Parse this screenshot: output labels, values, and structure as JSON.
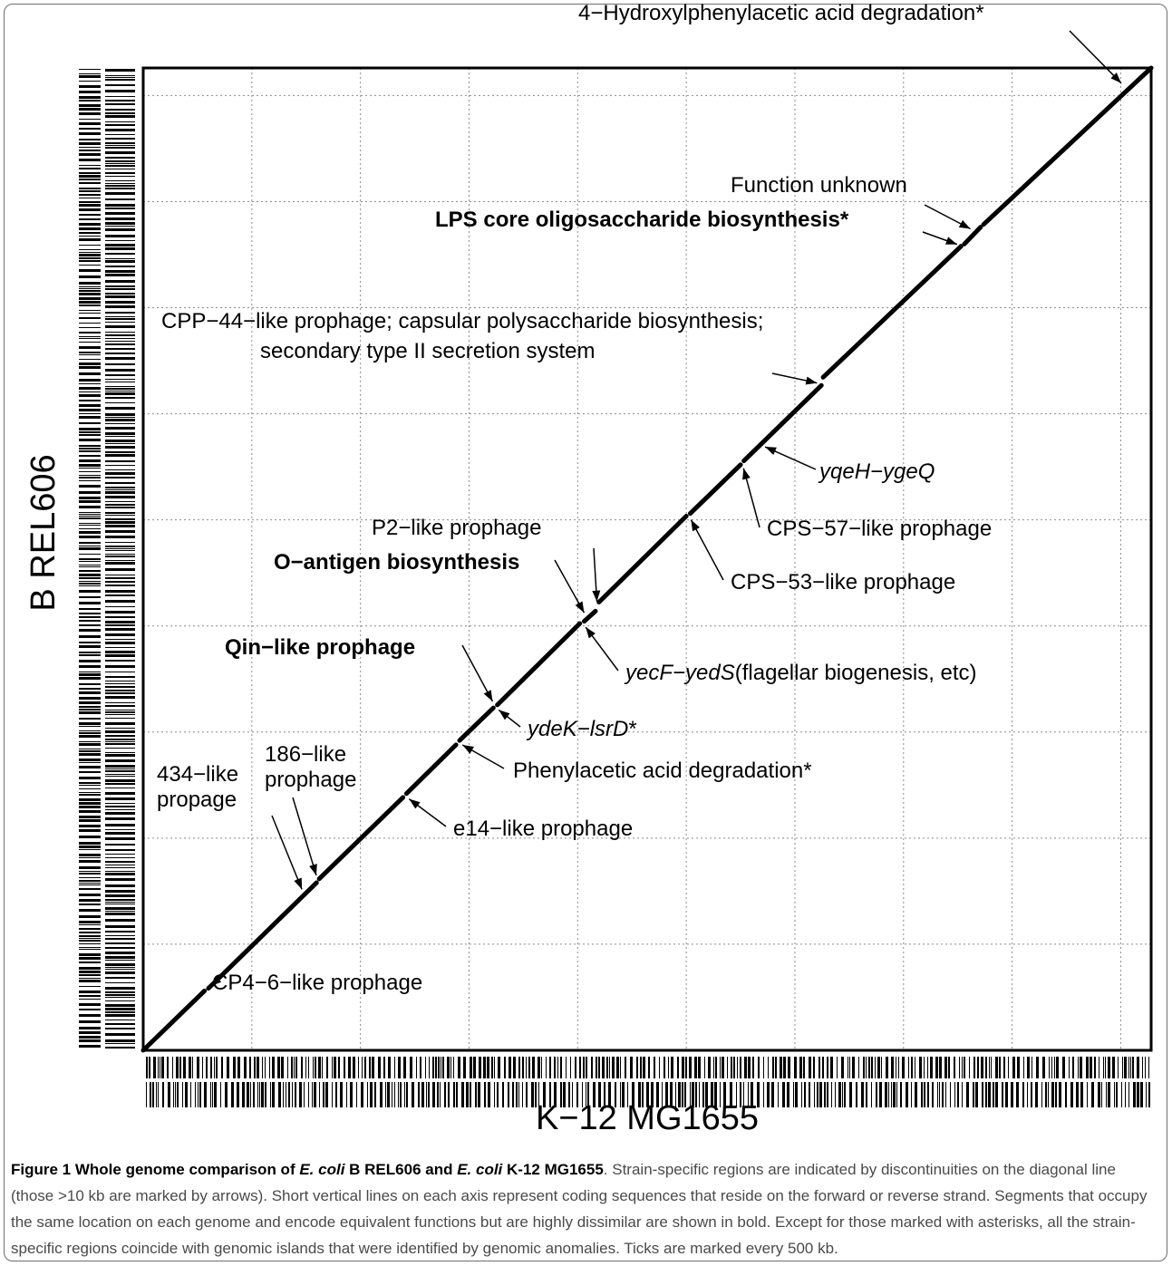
{
  "chart_data": {
    "type": "scatter",
    "subtype": "genome-dotplot",
    "xlabel": "K−12 MG1655",
    "ylabel": "B REL606",
    "grid": true,
    "grid_style": "dotted",
    "tick_interval_kb": 500,
    "xlim_kb": [
      0,
      4640
    ],
    "ylim_kb": [
      0,
      4630
    ],
    "diagonal_color": "#000000",
    "segments": [
      {
        "x": [
          0,
          282
        ],
        "y": [
          0,
          280
        ]
      },
      {
        "x": [
          300,
          798
        ],
        "y": [
          292,
          790
        ]
      },
      {
        "x": [
          810,
          1196
        ],
        "y": [
          808,
          1192
        ]
      },
      {
        "x": [
          1212,
          1440
        ],
        "y": [
          1210,
          1440
        ]
      },
      {
        "x": [
          1456,
          1612
        ],
        "y": [
          1460,
          1614
        ]
      },
      {
        "x": [
          1630,
          2010
        ],
        "y": [
          1628,
          2012
        ]
      },
      {
        "x": [
          2030,
          2082
        ],
        "y": [
          2022,
          2070
        ]
      },
      {
        "x": [
          2098,
          2500
        ],
        "y": [
          2112,
          2518
        ]
      },
      {
        "x": [
          2518,
          2750
        ],
        "y": [
          2530,
          2760
        ]
      },
      {
        "x": [
          2765,
          3122
        ],
        "y": [
          2778,
          3134
        ]
      },
      {
        "x": [
          3130,
          3765
        ],
        "y": [
          3172,
          3790
        ]
      },
      {
        "x": [
          3780,
          3855
        ],
        "y": [
          3800,
          3880
        ]
      },
      {
        "x": [
          3868,
          4640
        ],
        "y": [
          3892,
          4630
        ]
      }
    ],
    "annotations": [
      {
        "text": "4−Hydroxylphenylacetic acid degradation*",
        "italic": "",
        "rest": "",
        "bold": false,
        "target": [
          4520,
          4540
        ]
      },
      {
        "text": "Function unknown",
        "italic": "",
        "rest": "",
        "bold": false,
        "target": [
          3830,
          3860
        ]
      },
      {
        "text": "LPS core oligosaccharide biosynthesis*",
        "italic": "",
        "rest": "",
        "bold": true,
        "target": [
          3770,
          3790
        ]
      },
      {
        "text": "CPP−44−like prophage; capsular polysaccharide biosynthesis;",
        "italic": "",
        "rest": "",
        "bold": false,
        "target": null
      },
      {
        "text": "secondary type II secretion system",
        "italic": "",
        "rest": "",
        "bold": false,
        "target": [
          3126,
          3140
        ]
      },
      {
        "text": "",
        "italic": "yqeH−ygeQ",
        "rest": "",
        "bold": false,
        "target": [
          2840,
          2855
        ]
      },
      {
        "text": "CPS−57−like prophage",
        "italic": "",
        "rest": "",
        "bold": false,
        "target": [
          2757,
          2768
        ]
      },
      {
        "text": "P2−like prophage",
        "italic": "",
        "rest": "",
        "bold": false,
        "target": [
          2090,
          2090
        ]
      },
      {
        "text": "O−antigen biosynthesis",
        "italic": "",
        "rest": "",
        "bold": true,
        "target": [
          2042,
          2040
        ]
      },
      {
        "text": "CPS−53−like prophage",
        "italic": "",
        "rest": "",
        "bold": false,
        "target": [
          2510,
          2523
        ]
      },
      {
        "text": "Qin−like prophage",
        "italic": "",
        "rest": "",
        "bold": true,
        "target": [
          1620,
          1622
        ]
      },
      {
        "text": "",
        "italic": "yecF−yedS",
        "rest": "(flagellar biogenesis, etc)",
        "bold": false,
        "target": [
          2022,
          2015
        ]
      },
      {
        "text": "",
        "italic": "ydeK−lsrD",
        "rest": "*",
        "bold": false,
        "target": [
          1617,
          1620
        ]
      },
      {
        "text": "Phenylacetic acid degradation*",
        "italic": "",
        "rest": "",
        "bold": false,
        "target": [
          1448,
          1452
        ]
      },
      {
        "text": "186−like",
        "italic": "",
        "rest": "",
        "bold": false,
        "target": null
      },
      {
        "text": "prophage",
        "italic": "",
        "rest": "",
        "bold": false,
        "target": [
          804,
          800
        ]
      },
      {
        "text": "434−like",
        "italic": "",
        "rest": "",
        "bold": false,
        "target": null
      },
      {
        "text": "propage",
        "italic": "",
        "rest": "",
        "bold": false,
        "target": [
          740,
          735
        ]
      },
      {
        "text": "e14−like prophage",
        "italic": "",
        "rest": "",
        "bold": false,
        "target": [
          1204,
          1200
        ]
      },
      {
        "text": "CP4−6−like prophage",
        "italic": "",
        "rest": "",
        "bold": false,
        "target": [
          290,
          286
        ]
      }
    ]
  },
  "caption": {
    "figure_number": "Figure 1",
    "title_part1": "Whole genome comparison of",
    "title_org1": "E. coli",
    "title_part2": "B REL606 and",
    "title_org2": "E. coli",
    "title_part3": "K-12 MG1655",
    "body": ". Strain-specific regions are indicated by discontinuities on the diagonal line (those >10 kb are marked by arrows). Short vertical lines on each axis represent coding sequences that reside on the forward or reverse strand. Segments that occupy the same location on each genome and encode equivalent functions but are highly dissimilar are shown in bold. Except for those marked with asterisks, all the strain-specific regions coincide with genomic islands that were identified by genomic anomalies. Ticks are marked every 500 kb."
  }
}
